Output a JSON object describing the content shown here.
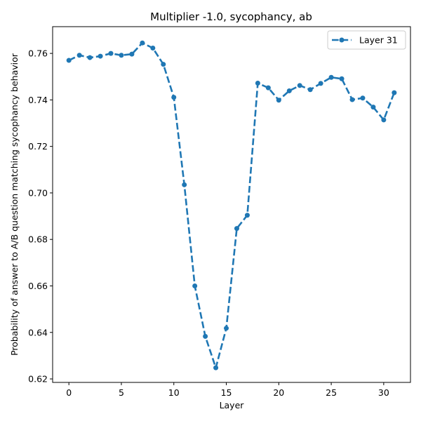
{
  "chart_data": {
    "type": "line",
    "title": "Multiplier -1.0, sycophancy, ab",
    "xlabel": "Layer",
    "ylabel": "Probability of answer to A/B question matching sycophancy behavior",
    "xlim": [
      -1.55,
      32.55
    ],
    "ylim": [
      0.6185,
      0.7715
    ],
    "x_ticks": [
      0,
      5,
      10,
      15,
      20,
      25,
      30
    ],
    "y_ticks": [
      0.62,
      0.64,
      0.66,
      0.68,
      0.7,
      0.72,
      0.74,
      0.76
    ],
    "y_tick_labels": [
      "0.62",
      "0.64",
      "0.66",
      "0.68",
      "0.70",
      "0.72",
      "0.74",
      "0.76"
    ],
    "grid": false,
    "legend_position": "top-right",
    "series": [
      {
        "name": "Layer 31",
        "color": "#1f77b4",
        "line_style": "dashed",
        "marker": "circle",
        "x": [
          0,
          1,
          2,
          3,
          4,
          5,
          6,
          7,
          8,
          9,
          10,
          11,
          12,
          13,
          14,
          15,
          16,
          17,
          18,
          19,
          20,
          21,
          22,
          23,
          24,
          25,
          26,
          27,
          28,
          29,
          30,
          31
        ],
        "values": [
          0.757,
          0.7592,
          0.7582,
          0.7588,
          0.76,
          0.7592,
          0.7597,
          0.7645,
          0.7623,
          0.7553,
          0.7411,
          0.7035,
          0.66,
          0.6383,
          0.6248,
          0.6418,
          0.6847,
          0.6904,
          0.7472,
          0.7452,
          0.7399,
          0.7439,
          0.7462,
          0.7444,
          0.7471,
          0.7497,
          0.7491,
          0.7401,
          0.7408,
          0.7369,
          0.7314,
          0.7431
        ]
      }
    ]
  }
}
